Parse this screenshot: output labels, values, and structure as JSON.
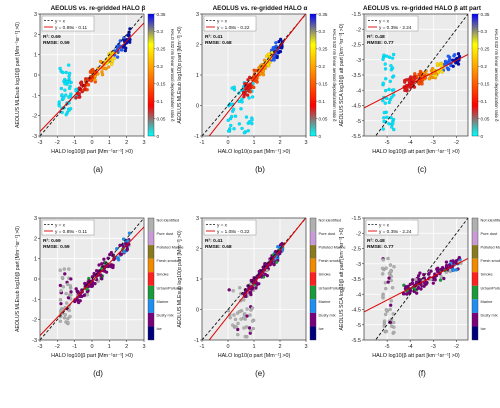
{
  "colorbar_dep": {
    "title": "HALO 532 nm linear aerosol depolarization ratio δ",
    "ticks": [
      0,
      0.05,
      0.1,
      0.15,
      0.2,
      0.25,
      0.3,
      0.35
    ],
    "tick_labels": [
      "0",
      "0.05",
      "0.1",
      "0.15",
      "0.2",
      "0.25",
      "0.3",
      "0.35"
    ],
    "stops": [
      "#00ffff",
      "#ff0000",
      "#ff8000",
      "#ffff00",
      "#0000ff"
    ]
  },
  "colorbar_type": {
    "classes": [
      {
        "name": "Not identified",
        "color": "#b0b0b0"
      },
      {
        "name": "Pure dust",
        "color": "#c89bd6"
      },
      {
        "name": "Polluted Marine",
        "color": "#8a7a1e"
      },
      {
        "name": "Fresh smoke",
        "color": "#f08a00"
      },
      {
        "name": "Smoke",
        "color": "#ff2020"
      },
      {
        "name": "Urban/Pollution",
        "color": "#1a9a3a"
      },
      {
        "name": "Marine",
        "color": "#1e8ff0"
      },
      {
        "name": "Dusty mix",
        "color": "#7b007b"
      },
      {
        "name": "Ice",
        "color": "#00007a"
      }
    ]
  },
  "chart_data": [
    {
      "type": "scatter",
      "panel": "(a)",
      "title": "AEOLUS vs. re-gridded HALO β",
      "xlabel": "HALO log10(β part [Mm⁻¹sr⁻¹] >0)",
      "ylabel": "AEOLUS MLEsub log10(β part [Mm⁻¹sr⁻¹] >0)",
      "xlim": [
        -3,
        3
      ],
      "ylim": [
        -3,
        3
      ],
      "xticks": [
        -3,
        -2,
        -1,
        0,
        1,
        2,
        3
      ],
      "yticks": [
        -3,
        -2,
        -1,
        0,
        1,
        2,
        3
      ],
      "grid": true,
      "legend_position": "top-left",
      "colorbar": "depolarization",
      "legend": [
        "y = x",
        "y = 0.89x - 0.11"
      ],
      "stats": [
        "R²: 0.69",
        "RMSE: 0.59"
      ],
      "fit": {
        "slope": 0.89,
        "intercept": -0.11
      },
      "cluster_low": {
        "x": [
          -1.9,
          -1.2
        ],
        "y": [
          -2.2,
          0.5
        ]
      },
      "points_main": {
        "x": [
          -1.0,
          2.2
        ],
        "slope": 0.89,
        "intercept": -0.11
      }
    },
    {
      "type": "scatter",
      "panel": "(b)",
      "title": "AEOLUS vs. re-gridded HALO α",
      "xlabel": "HALO log10(α part [Mm⁻¹] >0)",
      "ylabel": "AEOLUS MLEsub log10(α part [Mm⁻¹] >0)",
      "xlim": [
        -1,
        3
      ],
      "ylim": [
        -1,
        3
      ],
      "xticks": [
        -1,
        0,
        1,
        2,
        3
      ],
      "yticks": [
        -1,
        0,
        1,
        2,
        3
      ],
      "grid": true,
      "legend_position": "top-left",
      "colorbar": "depolarization",
      "legend": [
        "y = x",
        "y = 1.08x - 0.22"
      ],
      "stats": [
        "R²: 0.41",
        "RMSE: 0.68"
      ],
      "fit": {
        "slope": 1.08,
        "intercept": -0.22
      },
      "cluster_low": {
        "x": [
          0.0,
          1.0
        ],
        "y": [
          -0.9,
          0.8
        ]
      },
      "points_main": {
        "x": [
          0.6,
          2.1
        ],
        "slope": 1.08,
        "intercept": -0.22
      }
    },
    {
      "type": "scatter",
      "panel": "(c)",
      "title": "AEOLUS vs. re-gridded HALO β att part",
      "xlabel": "HALO log10(β att part [km⁻¹sr⁻¹] >0)",
      "ylabel": "AEOLUS SCA log10(β att part [km⁻¹sr⁻¹] >0)",
      "xlim": [
        -6,
        -1.5
      ],
      "ylim": [
        -5.5,
        -1.5
      ],
      "xticks": [
        -5,
        -4,
        -3,
        -2
      ],
      "yticks": [
        -5.5,
        -5,
        -4.5,
        -4,
        -3.5,
        -3,
        -2.5,
        -2,
        -1.5
      ],
      "grid": true,
      "legend_position": "top-left",
      "colorbar": "depolarization",
      "legend": [
        "y = x",
        "y = 0.39x - 2.24"
      ],
      "stats": [
        "R²: 0.48",
        "RMSE: 0.77"
      ],
      "fit": {
        "slope": 0.39,
        "intercept": -2.24
      },
      "cluster_low": {
        "x": [
          -5.2,
          -4.7
        ],
        "y": [
          -5.3,
          -2.8
        ]
      },
      "points_main": {
        "x": [
          -4.3,
          -1.8
        ],
        "slope": 0.39,
        "intercept": -2.24
      }
    },
    {
      "type": "scatter",
      "panel": "(d)",
      "title": "",
      "xlabel": "HALO log10(β part [Mm⁻¹sr⁻¹] >0)",
      "ylabel": "AEOLUS MLEsub log10(β part [Mm⁻¹sr⁻¹] >0)",
      "xlim": [
        -3,
        3
      ],
      "ylim": [
        -3,
        3
      ],
      "xticks": [
        -3,
        -2,
        -1,
        0,
        1,
        2,
        3
      ],
      "yticks": [
        -3,
        -2,
        -1,
        0,
        1,
        2,
        3
      ],
      "grid": true,
      "legend_position": "top-left",
      "colorbar": "aerosol-type",
      "legend": [
        "y = x",
        "y = 0.89x - 0.11"
      ],
      "stats": [
        "R²: 0.69",
        "RMSE: 0.59"
      ],
      "fit": {
        "slope": 0.89,
        "intercept": -0.11
      },
      "cluster_low": {
        "x": [
          -1.9,
          -1.2
        ],
        "y": [
          -2.2,
          0.5
        ]
      },
      "points_main": {
        "x": [
          -1.0,
          2.2
        ],
        "slope": 0.89,
        "intercept": -0.11
      }
    },
    {
      "type": "scatter",
      "panel": "(e)",
      "title": "",
      "xlabel": "HALO log10(α part [Mm⁻¹] >0)",
      "ylabel": "AEOLUS MLEsub log10(α part [Mm⁻¹] >0)",
      "xlim": [
        -1,
        3
      ],
      "ylim": [
        -1,
        3
      ],
      "xticks": [
        -1,
        0,
        1,
        2,
        3
      ],
      "yticks": [
        -1,
        0,
        1,
        2,
        3
      ],
      "grid": true,
      "legend_position": "top-left",
      "colorbar": "aerosol-type",
      "legend": [
        "y = x",
        "y = 1.08x - 0.22"
      ],
      "stats": [
        "R²: 0.41",
        "RMSE: 0.68"
      ],
      "fit": {
        "slope": 1.08,
        "intercept": -0.22
      },
      "cluster_low": {
        "x": [
          0.0,
          1.0
        ],
        "y": [
          -0.9,
          0.8
        ]
      },
      "points_main": {
        "x": [
          0.6,
          2.1
        ],
        "slope": 1.08,
        "intercept": -0.22
      }
    },
    {
      "type": "scatter",
      "panel": "(f)",
      "title": "",
      "xlabel": "HALO log10(β att part [km⁻¹sr⁻¹] >0)",
      "ylabel": "AEOLUS SCA log10(β att part [km⁻¹sr⁻¹] >0)",
      "xlim": [
        -6,
        -1.5
      ],
      "ylim": [
        -5.5,
        -1.5
      ],
      "xticks": [
        -5,
        -4,
        -3,
        -2
      ],
      "yticks": [
        -5.5,
        -5,
        -4.5,
        -4,
        -3.5,
        -3,
        -2.5,
        -2,
        -1.5
      ],
      "grid": true,
      "legend_position": "top-left",
      "colorbar": "aerosol-type",
      "legend": [
        "y = x",
        "y = 0.39x - 2.24"
      ],
      "stats": [
        "R²: 0.48",
        "RMSE: 0.77"
      ],
      "fit": {
        "slope": 0.39,
        "intercept": -2.24
      },
      "cluster_low": {
        "x": [
          -5.2,
          -4.7
        ],
        "y": [
          -5.3,
          -2.8
        ]
      },
      "points_main": {
        "x": [
          -4.3,
          -1.8
        ],
        "slope": 0.39,
        "intercept": -2.24
      }
    }
  ]
}
